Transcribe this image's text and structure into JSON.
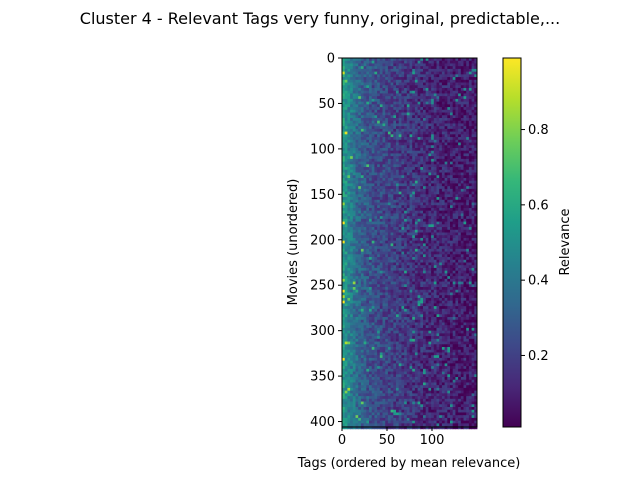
{
  "chart_data": {
    "type": "heatmap",
    "title": "Cluster 4 - Relevant Tags very funny, original, predictable,...",
    "xlabel": "Tags (ordered by mean relevance)",
    "ylabel": "Movies (unordered)",
    "xlim": [
      0,
      150
    ],
    "ylim": [
      406,
      0
    ],
    "rows": 406,
    "cols": 150,
    "xticks": [
      0,
      50,
      100
    ],
    "yticks": [
      0,
      50,
      100,
      150,
      200,
      250,
      300,
      350,
      400
    ],
    "colorbar": {
      "label": "Relevance",
      "colormap": "viridis",
      "range": [
        0.01,
        0.99
      ],
      "ticks": [
        0.2,
        0.4,
        0.6,
        0.8
      ]
    },
    "relevance_by_tag_rank": {
      "x": [
        0,
        5,
        10,
        15,
        20,
        30,
        40,
        50,
        60,
        70,
        80,
        100,
        120,
        149
      ],
      "mean": [
        0.55,
        0.47,
        0.4,
        0.35,
        0.31,
        0.26,
        0.23,
        0.21,
        0.19,
        0.17,
        0.15,
        0.12,
        0.1,
        0.08
      ]
    },
    "grid": false
  },
  "colors": {
    "viridis": [
      "#440154",
      "#482878",
      "#3e4989",
      "#31688e",
      "#26828e",
      "#1f9e89",
      "#35b779",
      "#6ece58",
      "#b5de2b",
      "#fde725"
    ]
  }
}
